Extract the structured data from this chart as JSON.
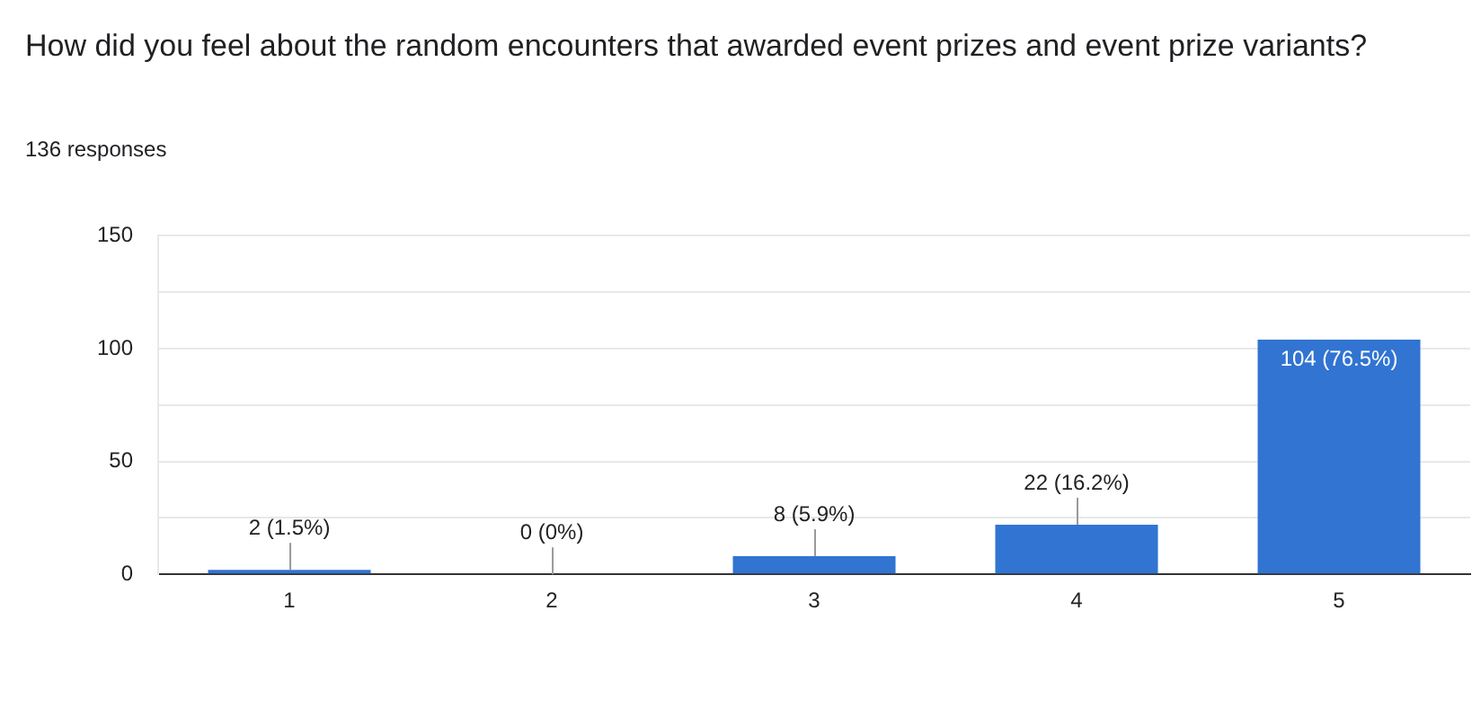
{
  "chart_data": {
    "type": "bar",
    "title": "How did you feel about the random encounters that awarded event prizes and event prize variants?",
    "subtitle": "136 responses",
    "categories": [
      "1",
      "2",
      "3",
      "4",
      "5"
    ],
    "values": [
      2,
      0,
      8,
      22,
      104
    ],
    "value_labels": [
      "2 (1.5%)",
      "0 (0%)",
      "8 (5.9%)",
      "22 (16.2%)",
      "104 (76.5%)"
    ],
    "color": "#3174d1",
    "ylim": [
      0,
      150
    ],
    "yticks": [
      0,
      {
        "value": 25,
        "label": null
      },
      50,
      {
        "value": 75,
        "label": null
      },
      100,
      {
        "value": 125,
        "label": null
      },
      150
    ],
    "grid": "y"
  }
}
